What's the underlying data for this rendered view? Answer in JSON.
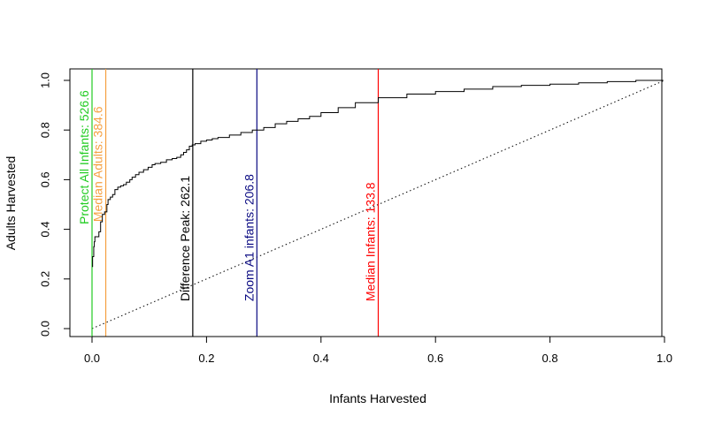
{
  "chart_data": {
    "type": "line",
    "title": "",
    "xlabel": "Infants Harvested",
    "ylabel": "Adults Harvested",
    "xlim": [
      0,
      1
    ],
    "ylim": [
      0,
      1
    ],
    "xticks": [
      "0.0",
      "0.2",
      "0.4",
      "0.6",
      "0.8",
      "1.0"
    ],
    "yticks": [
      "0.0",
      "0.2",
      "0.4",
      "0.6",
      "0.8",
      "1.0"
    ],
    "grid": false,
    "series": [
      {
        "name": "",
        "style": "step",
        "color": "#000000",
        "x": [
          0.0,
          0.001,
          0.003,
          0.004,
          0.005,
          0.008,
          0.012,
          0.015,
          0.018,
          0.022,
          0.026,
          0.028,
          0.032,
          0.036,
          0.04,
          0.045,
          0.05,
          0.055,
          0.06,
          0.066,
          0.07,
          0.076,
          0.082,
          0.09,
          0.098,
          0.105,
          0.11,
          0.12,
          0.13,
          0.14,
          0.148,
          0.155,
          0.16,
          0.165,
          0.17,
          0.175,
          0.18,
          0.19,
          0.2,
          0.21,
          0.22,
          0.24,
          0.26,
          0.28,
          0.3,
          0.32,
          0.34,
          0.36,
          0.38,
          0.4,
          0.43,
          0.46,
          0.5,
          0.55,
          0.6,
          0.65,
          0.7,
          0.75,
          0.8,
          0.85,
          0.9,
          0.95,
          0.998
        ],
        "y": [
          0.25,
          0.29,
          0.33,
          0.35,
          0.37,
          0.37,
          0.39,
          0.43,
          0.46,
          0.47,
          0.5,
          0.52,
          0.53,
          0.54,
          0.56,
          0.57,
          0.575,
          0.58,
          0.59,
          0.6,
          0.61,
          0.62,
          0.63,
          0.64,
          0.65,
          0.66,
          0.665,
          0.67,
          0.68,
          0.685,
          0.69,
          0.7,
          0.71,
          0.72,
          0.735,
          0.74,
          0.745,
          0.755,
          0.76,
          0.765,
          0.77,
          0.78,
          0.79,
          0.8,
          0.81,
          0.825,
          0.835,
          0.845,
          0.855,
          0.87,
          0.89,
          0.91,
          0.93,
          0.945,
          0.955,
          0.965,
          0.975,
          0.98,
          0.985,
          0.99,
          0.995,
          1.0,
          1.0
        ]
      },
      {
        "name": "",
        "style": "dotted",
        "color": "#000000",
        "x": [
          0,
          1
        ],
        "y": [
          0,
          1
        ]
      }
    ],
    "vlines": [
      {
        "x": 0.0,
        "label": "Protect All Infants: 526.6",
        "color": "#22cc22",
        "label_y": 0.42
      },
      {
        "x": 0.024,
        "label": "Median Adults: 384.6",
        "color": "#f5a040",
        "label_y": 0.43
      },
      {
        "x": 0.176,
        "label": "Difference Peak: 262.1",
        "color": "#000000",
        "label_y": 0.11
      },
      {
        "x": 0.288,
        "label": "Zoom A1 infants: 206.8",
        "color": "#0a0a82",
        "label_y": 0.11
      },
      {
        "x": 0.5,
        "label": "Median Infants: 133.8",
        "color": "#ff0000",
        "label_y": 0.11
      }
    ]
  }
}
